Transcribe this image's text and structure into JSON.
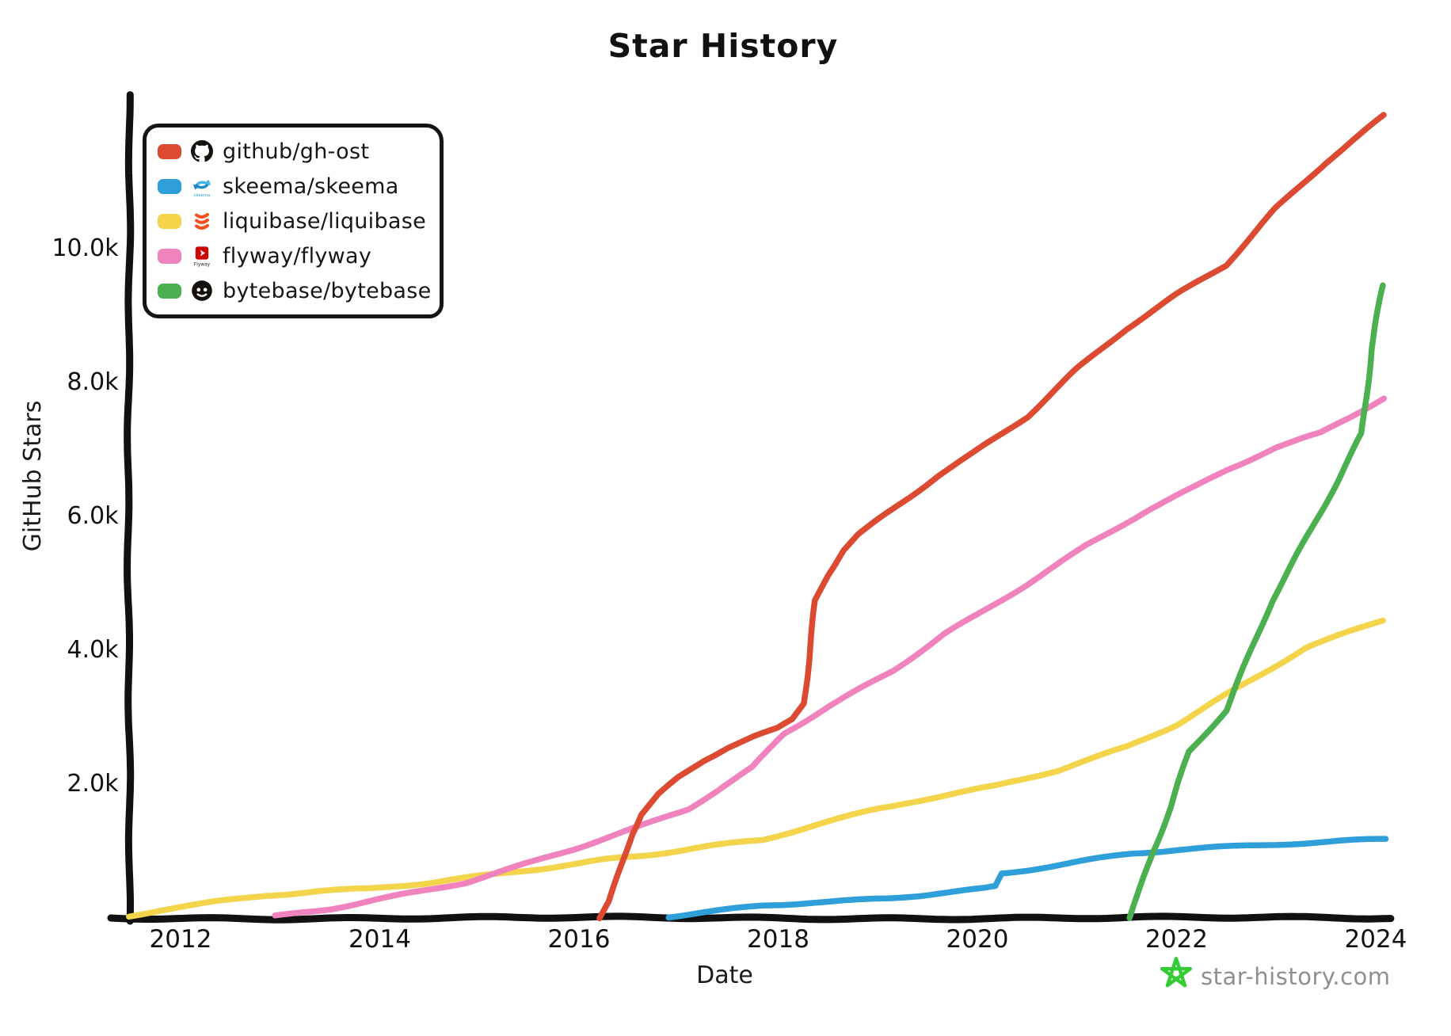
{
  "title": "Star History",
  "x_axis": {
    "label": "Date",
    "ticks": [
      {
        "value": 2012,
        "label": "2012"
      },
      {
        "value": 2014,
        "label": "2014"
      },
      {
        "value": 2016,
        "label": "2016"
      },
      {
        "value": 2018,
        "label": "2018"
      },
      {
        "value": 2020,
        "label": "2020"
      },
      {
        "value": 2022,
        "label": "2022"
      },
      {
        "value": 2024,
        "label": "2024"
      }
    ]
  },
  "y_axis": {
    "label": "GitHub Stars",
    "ticks": [
      {
        "value": 2000,
        "label": "2.0k"
      },
      {
        "value": 4000,
        "label": "4.0k"
      },
      {
        "value": 6000,
        "label": "6.0k"
      },
      {
        "value": 8000,
        "label": "8.0k"
      },
      {
        "value": 10000,
        "label": "10.0k"
      }
    ]
  },
  "legend": {
    "items": [
      {
        "name": "github/gh-ost",
        "color": "#dc4a32",
        "icon": "github-octocat-icon"
      },
      {
        "name": "skeema/skeema",
        "color": "#2f9fd9",
        "icon": "skeema-logo-icon"
      },
      {
        "name": "liquibase/liquibase",
        "color": "#f3d44b",
        "icon": "liquibase-logo-icon"
      },
      {
        "name": "flyway/flyway",
        "color": "#f083bd",
        "icon": "flyway-logo-icon"
      },
      {
        "name": "bytebase/bytebase",
        "color": "#4cb050",
        "icon": "bytebase-logo-icon"
      }
    ]
  },
  "watermark": {
    "text": "star-history.com",
    "text_color": "#8f8f8f",
    "star_color": "#35cb35"
  },
  "chart_data": {
    "type": "line",
    "title": "Star History",
    "xlabel": "Date",
    "ylabel": "GitHub Stars",
    "x_range": [
      2011.48,
      2024.15
    ],
    "y_range": [
      0,
      12300
    ],
    "grid": false,
    "legend_position": "top-left",
    "series": [
      {
        "name": "github/gh-ost",
        "color": "#dc4a32",
        "points": [
          [
            2016.2,
            0
          ],
          [
            2016.3,
            250
          ],
          [
            2016.42,
            800
          ],
          [
            2016.52,
            1250
          ],
          [
            2016.62,
            1550
          ],
          [
            2016.8,
            1850
          ],
          [
            2017.0,
            2100
          ],
          [
            2017.25,
            2350
          ],
          [
            2017.5,
            2550
          ],
          [
            2017.75,
            2700
          ],
          [
            2018.0,
            2820
          ],
          [
            2018.15,
            2960
          ],
          [
            2018.26,
            3200
          ],
          [
            2018.32,
            3900
          ],
          [
            2018.38,
            4740
          ],
          [
            2018.5,
            5120
          ],
          [
            2018.65,
            5500
          ],
          [
            2018.8,
            5730
          ],
          [
            2019.0,
            5950
          ],
          [
            2019.3,
            6280
          ],
          [
            2019.6,
            6620
          ],
          [
            2019.95,
            6950
          ],
          [
            2020.5,
            7500
          ],
          [
            2021.0,
            8200
          ],
          [
            2021.5,
            8800
          ],
          [
            2022.0,
            9300
          ],
          [
            2022.5,
            9750
          ],
          [
            2023.0,
            10600
          ],
          [
            2023.5,
            11300
          ],
          [
            2024.08,
            12000
          ]
        ]
      },
      {
        "name": "skeema/skeema",
        "color": "#2f9fd9",
        "points": [
          [
            2016.9,
            10
          ],
          [
            2017.3,
            80
          ],
          [
            2017.85,
            180
          ],
          [
            2018.3,
            230
          ],
          [
            2018.8,
            270
          ],
          [
            2019.1,
            300
          ],
          [
            2019.6,
            380
          ],
          [
            2020.08,
            450
          ],
          [
            2020.18,
            480
          ],
          [
            2020.24,
            670
          ],
          [
            2020.7,
            770
          ],
          [
            2021.1,
            860
          ],
          [
            2021.56,
            960
          ],
          [
            2022.0,
            1010
          ],
          [
            2022.5,
            1050
          ],
          [
            2023.0,
            1090
          ],
          [
            2023.5,
            1130
          ],
          [
            2024.1,
            1180
          ]
        ]
      },
      {
        "name": "liquibase/liquibase",
        "color": "#f3d44b",
        "points": [
          [
            2011.48,
            30
          ],
          [
            2011.8,
            130
          ],
          [
            2012.0,
            175
          ],
          [
            2012.5,
            265
          ],
          [
            2012.85,
            330
          ],
          [
            2013.4,
            390
          ],
          [
            2013.9,
            425
          ],
          [
            2014.5,
            520
          ],
          [
            2014.96,
            610
          ],
          [
            2015.5,
            720
          ],
          [
            2016.0,
            820
          ],
          [
            2016.3,
            890
          ],
          [
            2016.71,
            960
          ],
          [
            2017.3,
            1080
          ],
          [
            2017.85,
            1175
          ],
          [
            2018.4,
            1400
          ],
          [
            2019.0,
            1620
          ],
          [
            2019.35,
            1730
          ],
          [
            2020.18,
            1960
          ],
          [
            2020.8,
            2200
          ],
          [
            2021.5,
            2560
          ],
          [
            2022.0,
            2900
          ],
          [
            2022.5,
            3350
          ],
          [
            2023.3,
            4050
          ],
          [
            2024.07,
            4450
          ]
        ]
      },
      {
        "name": "flyway/flyway",
        "color": "#f083bd",
        "points": [
          [
            2012.95,
            20
          ],
          [
            2013.5,
            140
          ],
          [
            2014.0,
            290
          ],
          [
            2014.85,
            540
          ],
          [
            2015.5,
            830
          ],
          [
            2016.0,
            1060
          ],
          [
            2016.63,
            1370
          ],
          [
            2017.1,
            1620
          ],
          [
            2017.75,
            2240
          ],
          [
            2018.06,
            2750
          ],
          [
            2018.5,
            3150
          ],
          [
            2019.15,
            3700
          ],
          [
            2019.67,
            4260
          ],
          [
            2020.0,
            4540
          ],
          [
            2020.5,
            5000
          ],
          [
            2021.1,
            5570
          ],
          [
            2021.7,
            6080
          ],
          [
            2022.2,
            6440
          ],
          [
            2022.5,
            6680
          ],
          [
            2023.0,
            7020
          ],
          [
            2023.45,
            7240
          ],
          [
            2024.08,
            7770
          ]
        ]
      },
      {
        "name": "bytebase/bytebase",
        "color": "#4cb050",
        "points": [
          [
            2021.53,
            0
          ],
          [
            2021.62,
            350
          ],
          [
            2021.76,
            960
          ],
          [
            2021.95,
            1650
          ],
          [
            2022.13,
            2480
          ],
          [
            2022.5,
            3100
          ],
          [
            2022.95,
            4740
          ],
          [
            2023.3,
            5690
          ],
          [
            2023.62,
            6560
          ],
          [
            2023.86,
            7240
          ],
          [
            2023.96,
            8490
          ],
          [
            2024.08,
            9450
          ]
        ]
      }
    ]
  }
}
